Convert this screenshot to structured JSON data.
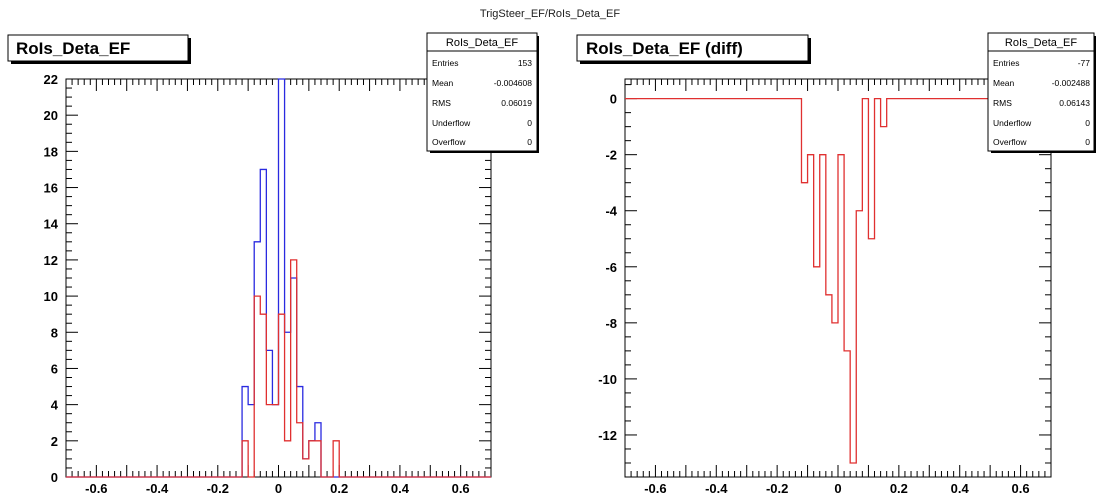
{
  "figure_title": "TrigSteer_EF/RoIs_Deta_EF",
  "chart_data": [
    {
      "type": "histogram",
      "title": "RoIs_Deta_EF",
      "xlabel": "",
      "ylabel": "",
      "xlim": [
        -0.7,
        0.7
      ],
      "ylim": [
        0,
        22
      ],
      "x_ticks": [
        "-0.6",
        "-0.4",
        "-0.2",
        "0",
        "0.2",
        "0.4",
        "0.6"
      ],
      "y_ticks": [
        "0",
        "2",
        "4",
        "6",
        "8",
        "10",
        "12",
        "14",
        "16",
        "18",
        "20",
        "22"
      ],
      "bin_edges": [
        -0.12,
        -0.1,
        -0.08,
        -0.06,
        -0.04,
        -0.02,
        0.0,
        0.02,
        0.04,
        0.06,
        0.08,
        0.1,
        0.12,
        0.14,
        0.16,
        0.18,
        0.2,
        0.22
      ],
      "series": [
        {
          "color": "#2a2ae0",
          "values": [
            5,
            4,
            13,
            17,
            7,
            4,
            22,
            8,
            11,
            5,
            1,
            2,
            3,
            0,
            0,
            0,
            0
          ]
        },
        {
          "color": "#e03030",
          "values": [
            2,
            0,
            10,
            9,
            4,
            4,
            9,
            2,
            12,
            3,
            1,
            2,
            2,
            0,
            0,
            2,
            0
          ]
        }
      ],
      "stats": {
        "title": "RoIs_Deta_EF",
        "rows": [
          {
            "label": "Entries",
            "value": "153"
          },
          {
            "label": "Mean",
            "value": "-0.004608"
          },
          {
            "label": "RMS",
            "value": "0.06019"
          },
          {
            "label": "Underflow",
            "value": "0"
          },
          {
            "label": "Overflow",
            "value": "0"
          }
        ]
      }
    },
    {
      "type": "histogram",
      "title": "RoIs_Deta_EF (diff)",
      "xlabel": "",
      "ylabel": "",
      "xlim": [
        -0.7,
        0.7
      ],
      "ylim": [
        -13.5,
        0.7
      ],
      "x_ticks": [
        "-0.6",
        "-0.4",
        "-0.2",
        "0",
        "0.2",
        "0.4",
        "0.6"
      ],
      "y_ticks": [
        "0",
        "-2",
        "-4",
        "-6",
        "-8",
        "-10",
        "-12"
      ],
      "bin_edges": [
        -0.12,
        -0.1,
        -0.08,
        -0.06,
        -0.04,
        -0.02,
        0.0,
        0.02,
        0.04,
        0.06,
        0.08,
        0.1,
        0.12,
        0.14,
        0.16
      ],
      "series": [
        {
          "color": "#e03030",
          "values": [
            -3,
            -2,
            -6,
            -2,
            -7,
            -8,
            -2,
            -9,
            -13,
            -4,
            0,
            -5,
            0,
            -1
          ]
        }
      ],
      "stats": {
        "title": "RoIs_Deta_EF",
        "rows": [
          {
            "label": "Entries",
            "value": "-77"
          },
          {
            "label": "Mean",
            "value": "-0.002488"
          },
          {
            "label": "RMS",
            "value": "0.06143"
          },
          {
            "label": "Underflow",
            "value": "0"
          },
          {
            "label": "Overflow",
            "value": "0"
          }
        ]
      }
    }
  ]
}
